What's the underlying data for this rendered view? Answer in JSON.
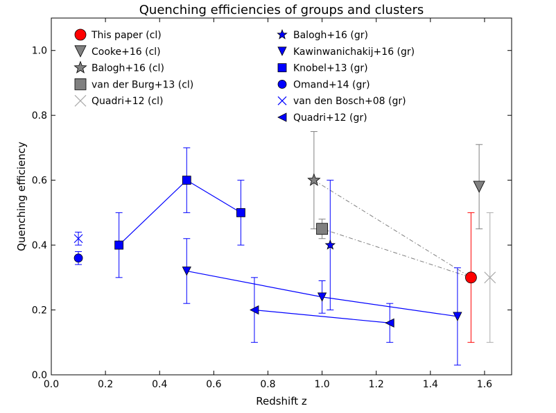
{
  "chart_data": {
    "type": "scatter",
    "title": "Quenching efficiencies of groups and clusters",
    "xlabel": "Redshift z",
    "ylabel": "Quenching efficiency",
    "xlim": [
      0.0,
      1.7
    ],
    "ylim": [
      0.0,
      1.1
    ],
    "xticks": [
      "0.0",
      "0.2",
      "0.4",
      "0.6",
      "0.8",
      "1.0",
      "1.2",
      "1.4",
      "1.6"
    ],
    "yticks": [
      "0.0",
      "0.2",
      "0.4",
      "0.6",
      "0.8",
      "1.0"
    ],
    "grid": false,
    "legend_position": "top",
    "colors": {
      "blue": "#0000ff",
      "red": "#ff0000",
      "gray": "#808080",
      "lightgray": "#aaaaaa"
    },
    "series": [
      {
        "name": "This paper (cl)",
        "marker": "circle-large",
        "color": "#ff0000",
        "connect": false,
        "points": [
          {
            "x": 1.55,
            "y": 0.3,
            "ylo": 0.1,
            "yhi": 0.5
          }
        ]
      },
      {
        "name": "Cooke+16 (cl)",
        "marker": "triangle-down-large",
        "color": "#808080",
        "connect": false,
        "points": [
          {
            "x": 1.58,
            "y": 0.58,
            "ylo": 0.45,
            "yhi": 0.71
          }
        ]
      },
      {
        "name": "Balogh+16 (cl)",
        "marker": "star-large",
        "color": "#808080",
        "connect": false,
        "points": [
          {
            "x": 0.97,
            "y": 0.6,
            "ylo": 0.45,
            "yhi": 0.75
          }
        ]
      },
      {
        "name": "van der Burg+13 (cl)",
        "marker": "square-large",
        "color": "#808080",
        "connect": false,
        "points": [
          {
            "x": 1.0,
            "y": 0.45,
            "ylo": 0.42,
            "yhi": 0.48
          }
        ]
      },
      {
        "name": "Quadri+12 (cl)",
        "marker": "x-large",
        "color": "#aaaaaa",
        "connect": false,
        "points": [
          {
            "x": 1.62,
            "y": 0.3,
            "ylo": 0.1,
            "yhi": 0.5
          }
        ]
      },
      {
        "name": "Balogh+16 (gr)",
        "marker": "star",
        "color": "#0000ff",
        "connect": false,
        "points": [
          {
            "x": 1.03,
            "y": 0.4,
            "ylo": 0.2,
            "yhi": 0.6
          }
        ]
      },
      {
        "name": "Kawinwanichakij+16 (gr)",
        "marker": "triangle-down",
        "color": "#0000ff",
        "connect": true,
        "points": [
          {
            "x": 0.5,
            "y": 0.32,
            "ylo": 0.22,
            "yhi": 0.42
          },
          {
            "x": 1.0,
            "y": 0.24,
            "ylo": 0.19,
            "yhi": 0.29
          },
          {
            "x": 1.5,
            "y": 0.18,
            "ylo": 0.03,
            "yhi": 0.33
          }
        ]
      },
      {
        "name": "Knobel+13 (gr)",
        "marker": "square",
        "color": "#0000ff",
        "connect": true,
        "points": [
          {
            "x": 0.25,
            "y": 0.4,
            "ylo": 0.3,
            "yhi": 0.5
          },
          {
            "x": 0.5,
            "y": 0.6,
            "ylo": 0.5,
            "yhi": 0.7
          },
          {
            "x": 0.7,
            "y": 0.5,
            "ylo": 0.4,
            "yhi": 0.6
          }
        ]
      },
      {
        "name": "Omand+14 (gr)",
        "marker": "circle",
        "color": "#0000ff",
        "connect": false,
        "points": [
          {
            "x": 0.1,
            "y": 0.36,
            "ylo": 0.34,
            "yhi": 0.38
          }
        ]
      },
      {
        "name": "van den Bosch+08 (gr)",
        "marker": "x",
        "color": "#0000ff",
        "connect": false,
        "points": [
          {
            "x": 0.1,
            "y": 0.42,
            "ylo": 0.4,
            "yhi": 0.44
          }
        ]
      },
      {
        "name": "Quadri+12 (gr)",
        "marker": "triangle-left",
        "color": "#0000ff",
        "connect": true,
        "points": [
          {
            "x": 0.75,
            "y": 0.2,
            "ylo": 0.1,
            "yhi": 0.3
          },
          {
            "x": 1.25,
            "y": 0.16,
            "ylo": 0.1,
            "yhi": 0.22
          }
        ]
      }
    ],
    "guide_lines": [
      {
        "from": {
          "x": 0.97,
          "y": 0.6
        },
        "to": {
          "x": 1.55,
          "y": 0.3
        },
        "style": "dash-dot",
        "color": "#808080"
      },
      {
        "from": {
          "x": 1.0,
          "y": 0.45
        },
        "to": {
          "x": 1.55,
          "y": 0.3
        },
        "style": "dash-dot",
        "color": "#808080"
      }
    ]
  }
}
